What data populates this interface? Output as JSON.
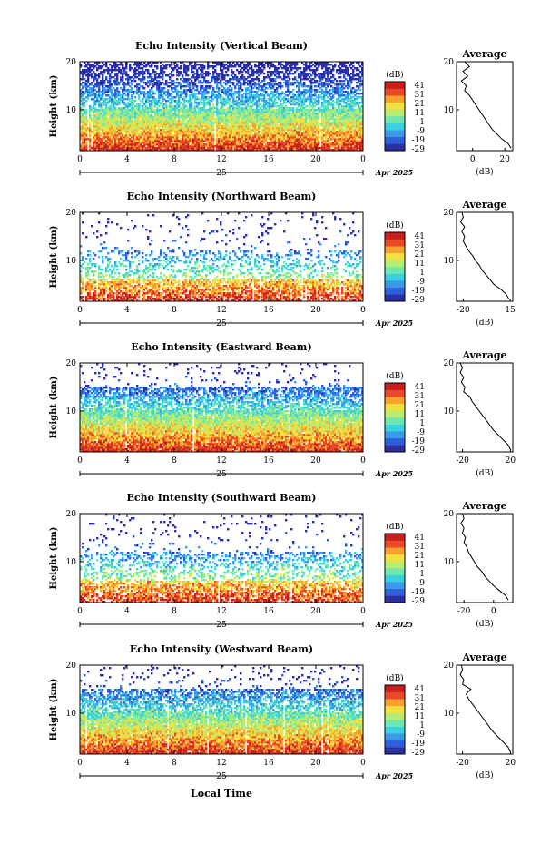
{
  "figure": {
    "xlabel": "Local Time",
    "month_label": "Apr 2025",
    "day_label": "25",
    "x_ticks": [
      "0",
      "4",
      "8",
      "12",
      "16",
      "20",
      "0"
    ],
    "y_ticks": [
      "20",
      "10"
    ],
    "ylabel": "Height (km)",
    "colorbar_unit": "(dB)",
    "colorbar_ticks": [
      "41",
      "31",
      "21",
      "11",
      "1",
      "-9",
      "-19",
      "-29"
    ],
    "colorbar_colors": [
      "#2b2fa0",
      "#2f5fd8",
      "#3a9ae8",
      "#3ad0e0",
      "#6ee6b0",
      "#b8ec70",
      "#f2e040",
      "#f8a030",
      "#e84a28",
      "#c81e1e"
    ],
    "avg_title": "Average",
    "avg_xlabel": "(dB)"
  },
  "chart_data": [
    {
      "type": "heatmap",
      "title": "Echo Intensity (Vertical Beam)",
      "xlabel": "Local Time",
      "ylabel": "Height (km)",
      "xlim": [
        0,
        24
      ],
      "ylim": [
        1.5,
        20
      ],
      "clim": [
        -29,
        41
      ],
      "average": {
        "title": "Average",
        "xlabel": "(dB)",
        "x_ticks": [
          "0",
          "20"
        ],
        "xlim": [
          -10,
          25
        ],
        "height": [
          2,
          3,
          4,
          5,
          6,
          7,
          8,
          9,
          10,
          11,
          12,
          13,
          14,
          15,
          16,
          17,
          18,
          19,
          20
        ],
        "values": [
          24,
          22,
          18,
          15,
          12,
          10,
          8,
          6,
          4,
          2,
          0,
          -2,
          -5,
          -4,
          -7,
          -3,
          -6,
          -2,
          -5
        ]
      }
    },
    {
      "type": "heatmap",
      "title": "Echo Intensity (Northward Beam)",
      "xlabel": "Local Time",
      "ylabel": "Height (km)",
      "xlim": [
        0,
        24
      ],
      "ylim": [
        1.5,
        20
      ],
      "clim": [
        -29,
        41
      ],
      "average": {
        "title": "Average",
        "xlabel": "(dB)",
        "x_ticks": [
          "-20",
          "15"
        ],
        "xlim": [
          -25,
          17
        ],
        "height": [
          2,
          3,
          4,
          5,
          6,
          7,
          8,
          9,
          10,
          11,
          12,
          13,
          14,
          15,
          16,
          17,
          18,
          19,
          20
        ],
        "values": [
          14,
          12,
          8,
          3,
          0,
          -3,
          -6,
          -8,
          -11,
          -13,
          -16,
          -18,
          -20,
          -19,
          -21,
          -19,
          -22,
          -20,
          -21
        ]
      }
    },
    {
      "type": "heatmap",
      "title": "Echo Intensity (Eastward Beam)",
      "xlabel": "Local Time",
      "ylabel": "Height (km)",
      "xlim": [
        0,
        24
      ],
      "ylim": [
        1.5,
        20
      ],
      "clim": [
        -29,
        41
      ],
      "average": {
        "title": "Average",
        "xlabel": "(dB)",
        "x_ticks": [
          "-20",
          "20"
        ],
        "xlim": [
          -25,
          22
        ],
        "height": [
          2,
          3,
          4,
          5,
          6,
          7,
          8,
          9,
          10,
          11,
          12,
          13,
          14,
          15,
          16,
          17,
          18,
          19,
          20
        ],
        "values": [
          20,
          18,
          14,
          10,
          6,
          3,
          0,
          -3,
          -6,
          -9,
          -12,
          -14,
          -19,
          -18,
          -21,
          -19,
          -22,
          -20,
          -22
        ]
      }
    },
    {
      "type": "heatmap",
      "title": "Echo Intensity (Southward Beam)",
      "xlabel": "Local Time",
      "ylabel": "Height (km)",
      "xlim": [
        0,
        24
      ],
      "ylim": [
        1.5,
        20
      ],
      "clim": [
        -29,
        41
      ],
      "average": {
        "title": "Average",
        "xlabel": "(dB)",
        "x_ticks": [
          "-20",
          "0"
        ],
        "xlim": [
          -25,
          13
        ],
        "height": [
          2,
          3,
          4,
          5,
          6,
          7,
          8,
          9,
          10,
          11,
          12,
          13,
          14,
          15,
          16,
          17,
          18,
          19,
          20
        ],
        "values": [
          10,
          8,
          4,
          0,
          -3,
          -6,
          -8,
          -11,
          -13,
          -15,
          -17,
          -18,
          -20,
          -19,
          -21,
          -20,
          -22,
          -20,
          -21
        ]
      }
    },
    {
      "type": "heatmap",
      "title": "Echo Intensity (Westward Beam)",
      "xlabel": "Local Time",
      "ylabel": "Height (km)",
      "xlim": [
        0,
        24
      ],
      "ylim": [
        1.5,
        20
      ],
      "clim": [
        -29,
        41
      ],
      "average": {
        "title": "Average",
        "xlabel": "(dB)",
        "x_ticks": [
          "-20",
          "20"
        ],
        "xlim": [
          -25,
          22
        ],
        "height": [
          2,
          3,
          4,
          5,
          6,
          7,
          8,
          9,
          10,
          11,
          12,
          13,
          14,
          15,
          16,
          17,
          18,
          19,
          20
        ],
        "values": [
          20,
          18,
          14,
          10,
          6,
          3,
          0,
          -3,
          -6,
          -9,
          -12,
          -15,
          -17,
          -13,
          -20,
          -19,
          -22,
          -20,
          -21
        ]
      }
    }
  ]
}
